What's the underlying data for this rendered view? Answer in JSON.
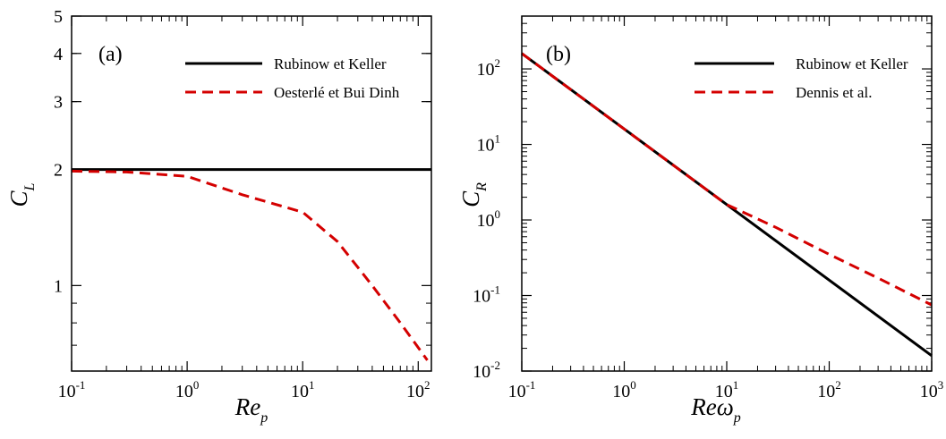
{
  "chart_data": [
    {
      "type": "line",
      "panel_label": "(a)",
      "xlabel": {
        "main": "Re",
        "sub": "p"
      },
      "ylabel": {
        "main": "C",
        "sub": "L"
      },
      "xscale": "log",
      "yscale": "log",
      "xlim": [
        0.1,
        130
      ],
      "ylim": [
        0.6,
        5
      ],
      "xticks": [
        {
          "value": 0.1,
          "base": "10",
          "exp": "-1"
        },
        {
          "value": 1,
          "base": "10",
          "exp": "0"
        },
        {
          "value": 10,
          "base": "10",
          "exp": "1"
        },
        {
          "value": 100,
          "base": "10",
          "exp": "2"
        }
      ],
      "yticks": [
        {
          "value": 1,
          "label": "1"
        },
        {
          "value": 2,
          "label": "2"
        },
        {
          "value": 3,
          "label": "3"
        },
        {
          "value": 4,
          "label": "4"
        },
        {
          "value": 5,
          "label": "5"
        }
      ],
      "legend_position": "top-right",
      "series": [
        {
          "name": "Rubinow et Keller",
          "color": "#000000",
          "dash": "solid",
          "x": [
            0.1,
            130
          ],
          "y": [
            2.0,
            2.0
          ]
        },
        {
          "name": "Oesterlé et Bui Dinh",
          "color": "#d40000",
          "dash": "dashed",
          "x": [
            0.1,
            0.3,
            1,
            3,
            10,
            20,
            40,
            70,
            120
          ],
          "y": [
            1.98,
            1.97,
            1.92,
            1.72,
            1.55,
            1.3,
            1.0,
            0.8,
            0.64
          ]
        }
      ]
    },
    {
      "type": "line",
      "panel_label": "(b)",
      "xlabel": {
        "main": "Reω",
        "sub": "p"
      },
      "ylabel": {
        "main": "C",
        "sub": "R"
      },
      "xscale": "log",
      "yscale": "log",
      "xlim": [
        0.1,
        1000
      ],
      "ylim": [
        0.01,
        500
      ],
      "xticks": [
        {
          "value": 0.1,
          "base": "10",
          "exp": "-1"
        },
        {
          "value": 1,
          "base": "10",
          "exp": "0"
        },
        {
          "value": 10,
          "base": "10",
          "exp": "1"
        },
        {
          "value": 100,
          "base": "10",
          "exp": "2"
        },
        {
          "value": 1000,
          "base": "10",
          "exp": "3"
        }
      ],
      "yticks": [
        {
          "value": 0.01,
          "base": "10",
          "exp": "-2"
        },
        {
          "value": 0.1,
          "base": "10",
          "exp": "-1"
        },
        {
          "value": 1,
          "base": "10",
          "exp": "0"
        },
        {
          "value": 10,
          "base": "10",
          "exp": "1"
        },
        {
          "value": 100,
          "base": "10",
          "exp": "2"
        }
      ],
      "legend_position": "top-right",
      "series": [
        {
          "name": "Rubinow et Keller",
          "color": "#000000",
          "dash": "solid",
          "x": [
            0.1,
            1000
          ],
          "y": [
            160,
            0.016
          ]
        },
        {
          "name": "Dennis et al.",
          "color": "#d40000",
          "dash": "dashed",
          "x": [
            0.1,
            10,
            30,
            100,
            300,
            1000
          ],
          "y": [
            160,
            1.6,
            0.8,
            0.35,
            0.17,
            0.075
          ]
        }
      ]
    }
  ]
}
